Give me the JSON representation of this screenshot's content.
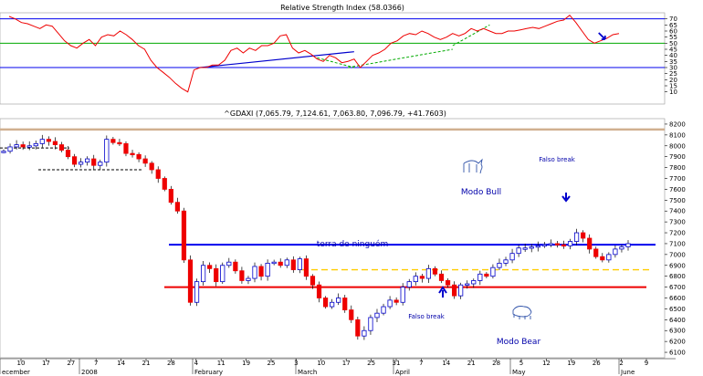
{
  "chart_data": [
    {
      "type": "line",
      "title": "Relative Strength Index (58.0366)",
      "ylim": [
        0,
        75
      ],
      "y_ticks": [
        10,
        15,
        20,
        25,
        30,
        35,
        40,
        45,
        50,
        55,
        60,
        65,
        70
      ],
      "reference_lines": [
        {
          "value": 70,
          "color": "#0000ee"
        },
        {
          "value": 50,
          "color": "#00aa00"
        },
        {
          "value": 30,
          "color": "#0000ee"
        }
      ],
      "series": [
        {
          "color": "#ee0000",
          "values": [
            72,
            70,
            67,
            66,
            64,
            62,
            65,
            64,
            58,
            52,
            48,
            46,
            50,
            53,
            48,
            55,
            57,
            56,
            60,
            57,
            53,
            48,
            45,
            36,
            30,
            26,
            22,
            17,
            13,
            10,
            28,
            30,
            30,
            32,
            32,
            36,
            44,
            46,
            42,
            46,
            44,
            48,
            48,
            50,
            56,
            57,
            46,
            42,
            44,
            41,
            37,
            35,
            40,
            38,
            34,
            35,
            37,
            30,
            35,
            40,
            42,
            45,
            50,
            52,
            56,
            58,
            57,
            60,
            58,
            55,
            53,
            55,
            58,
            56,
            58,
            62,
            60,
            62,
            60,
            58,
            58,
            60,
            60,
            61,
            62,
            63,
            62,
            64,
            66,
            68,
            69,
            73,
            67,
            60,
            53,
            50,
            52,
            54,
            57,
            58
          ]
        }
      ],
      "annotations": []
    },
    {
      "type": "line",
      "title": "^GDAXI (7,065.79, 7,124.61, 7,063.80, 7,096.79, +41.7603)",
      "ylim": [
        6050,
        8250
      ],
      "y_ticks": [
        6100,
        6200,
        6300,
        6400,
        6500,
        6600,
        6700,
        6800,
        6900,
        7000,
        7100,
        7200,
        7300,
        7400,
        7500,
        7600,
        7700,
        7800,
        7900,
        8000,
        8100,
        8200
      ],
      "x_tick_labels": [
        "10",
        "17",
        "27",
        "7",
        "14",
        "21",
        "28",
        "4",
        "11",
        "19",
        "25",
        "3",
        "10",
        "17",
        "25",
        "31",
        "7",
        "14",
        "21",
        "28",
        "5",
        "12",
        "19",
        "26",
        "2",
        "9"
      ],
      "month_labels": [
        "ecember",
        "2008",
        "February",
        "March",
        "April",
        "May",
        "June"
      ],
      "series": [
        {
          "name": "",
          "color": "#ee0000",
          "values": [
            7950,
            7990,
            8010,
            7990,
            8000,
            8020,
            8060,
            8040,
            8010,
            7960,
            7900,
            7830,
            7850,
            7880,
            7820,
            7850,
            8060,
            8030,
            8020,
            7930,
            7920,
            7880,
            7840,
            7780,
            7700,
            7600,
            7480,
            7400,
            6950,
            6560,
            6750,
            6900,
            6870,
            6750,
            6900,
            6930,
            6850,
            6760,
            6780,
            6890,
            6800,
            6920,
            6930,
            6900,
            6950,
            6860,
            6960,
            6800,
            6720,
            6600,
            6520,
            6560,
            6600,
            6490,
            6400,
            6250,
            6300,
            6420,
            6460,
            6520,
            6580,
            6560,
            6700,
            6750,
            6800,
            6780,
            6870,
            6820,
            6760,
            6720,
            6620,
            6720,
            6730,
            6760,
            6820,
            6800,
            6880,
            6920,
            6950,
            7010,
            7060,
            7060,
            7070,
            7080,
            7090,
            7100,
            7090,
            7080,
            7120,
            7200,
            7150,
            7050,
            6980,
            6950,
            7000,
            7050,
            7070,
            7100
          ]
        }
      ],
      "reference_lines": [
        {
          "value": 7090,
          "color": "#0000ee"
        },
        {
          "value": 6860,
          "color": "#ffcc00",
          "style": "dashed"
        },
        {
          "value": 6700,
          "color": "#ee0000"
        },
        {
          "value": 8150,
          "color": "#d0b090"
        }
      ],
      "annotations": [
        {
          "text": "Modo Bull"
        },
        {
          "text": "Falso break",
          "position": "top"
        },
        {
          "text": "terra de ninguém"
        },
        {
          "text": "Falso break",
          "position": "bottom"
        },
        {
          "text": "Modo Bear"
        }
      ]
    }
  ]
}
